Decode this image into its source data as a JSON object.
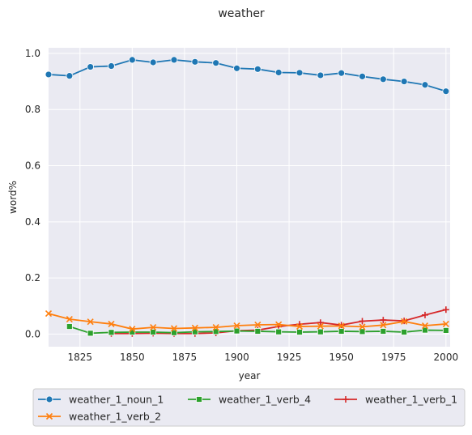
{
  "chart_data": {
    "type": "line",
    "title": "weather",
    "xlabel": "year",
    "ylabel": "word%",
    "xlim": [
      1810,
      2002
    ],
    "ylim": [
      -0.045,
      1.02
    ],
    "xticks": [
      1825,
      1850,
      1875,
      1900,
      1925,
      1950,
      1975,
      2000
    ],
    "yticks": [
      0.0,
      0.2,
      0.4,
      0.6,
      0.8,
      1.0
    ],
    "xtick_labels": [
      "1825",
      "1850",
      "1875",
      "1900",
      "1925",
      "1950",
      "1975",
      "2000"
    ],
    "ytick_labels": [
      "0.0",
      "0.2",
      "0.4",
      "0.6",
      "0.8",
      "1.0"
    ],
    "grid": true,
    "legend_position": "bottom",
    "colors": {
      "background": "#eaeaf2",
      "grid": "#ffffff",
      "weather_1_noun_1": "#1f77b4",
      "weather_1_verb_2": "#ff7f0e",
      "weather_1_verb_4": "#2ca02c",
      "weather_1_verb_1": "#d62728"
    },
    "series": [
      {
        "name": "weather_1_noun_1",
        "marker": "circle",
        "x": [
          1810,
          1820,
          1830,
          1840,
          1850,
          1860,
          1870,
          1880,
          1890,
          1900,
          1910,
          1920,
          1930,
          1940,
          1950,
          1960,
          1970,
          1980,
          1990,
          2000
        ],
        "y": [
          0.925,
          0.92,
          0.952,
          0.955,
          0.977,
          0.968,
          0.977,
          0.97,
          0.966,
          0.947,
          0.944,
          0.932,
          0.931,
          0.922,
          0.93,
          0.918,
          0.908,
          0.9,
          0.888,
          0.865
        ]
      },
      {
        "name": "weather_1_verb_2",
        "marker": "x",
        "x": [
          1810,
          1820,
          1830,
          1840,
          1850,
          1860,
          1870,
          1880,
          1890,
          1900,
          1910,
          1920,
          1930,
          1940,
          1950,
          1960,
          1970,
          1980,
          1990,
          2000
        ],
        "y": [
          0.073,
          0.053,
          0.044,
          0.036,
          0.018,
          0.024,
          0.02,
          0.022,
          0.024,
          0.03,
          0.033,
          0.034,
          0.027,
          0.028,
          0.029,
          0.026,
          0.032,
          0.045,
          0.03,
          0.036
        ]
      },
      {
        "name": "weather_1_verb_4",
        "marker": "square",
        "x": [
          1820,
          1830,
          1840,
          1850,
          1860,
          1870,
          1880,
          1890,
          1900,
          1910,
          1920,
          1930,
          1940,
          1950,
          1960,
          1970,
          1980,
          1990,
          2000
        ],
        "y": [
          0.027,
          0.003,
          0.006,
          0.007,
          0.007,
          0.005,
          0.008,
          0.009,
          0.011,
          0.01,
          0.008,
          0.007,
          0.008,
          0.01,
          0.009,
          0.01,
          0.007,
          0.014,
          0.013
        ]
      },
      {
        "name": "weather_1_verb_1",
        "marker": "plus",
        "x": [
          1840,
          1850,
          1860,
          1870,
          1880,
          1890,
          1900,
          1910,
          1920,
          1930,
          1940,
          1950,
          1960,
          1970,
          1980,
          1990,
          2000
        ],
        "y": [
          0.002,
          0.002,
          0.003,
          0.002,
          0.002,
          0.004,
          0.012,
          0.014,
          0.027,
          0.035,
          0.041,
          0.032,
          0.046,
          0.05,
          0.047,
          0.068,
          0.087
        ]
      }
    ]
  }
}
